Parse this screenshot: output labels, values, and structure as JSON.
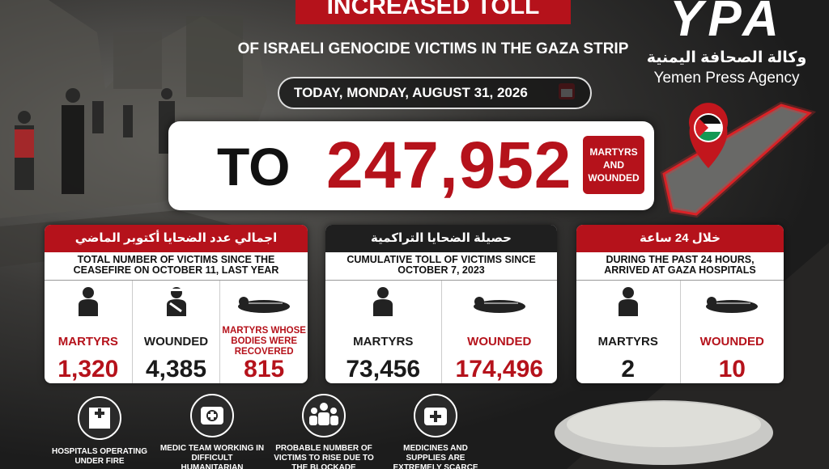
{
  "header": {
    "banner": "INCREASED TOLL",
    "subtitle": "OF ISRAELI GENOCIDE VICTIMS IN THE GAZA STRIP",
    "date": "TODAY, MONDAY, AUGUST 31, 2026"
  },
  "logo": {
    "mark": "YPA",
    "arabic": "وكالة الصحافة اليمنية",
    "name": "Yemen Press Agency"
  },
  "total": {
    "prefix": "TO",
    "value": "247,952",
    "badge": "MARTYRS AND WOUNDED"
  },
  "panels": [
    {
      "heading": "اجمالي عدد الضحايا أكتوبر الماضي",
      "caption": "TOTAL NUMBER OF VICTIMS SINCE THE CEASEFIRE ON OCTOBER 11, LAST YEAR",
      "stats": [
        {
          "label": "MARTYRS",
          "value": "1,320"
        },
        {
          "label": "WOUNDED",
          "value": "4,385"
        },
        {
          "label": "MARTYRS WHOSE BODIES WERE RECOVERED",
          "value": "815"
        }
      ]
    },
    {
      "heading": "حصيلة الضحايا التراكمية",
      "caption": "CUMULATIVE TOLL OF VICTIMS SINCE OCTOBER 7, 2023",
      "stats": [
        {
          "label": "MARTYRS",
          "value": "73,456"
        },
        {
          "label": "WOUNDED",
          "value": "174,496"
        }
      ]
    },
    {
      "heading": "خلال 24 ساعة",
      "caption": "DURING THE PAST 24 HOURS, ARRIVED AT GAZA HOSPITALS",
      "stats": [
        {
          "label": "MARTYRS",
          "value": "2"
        },
        {
          "label": "WOUNDED",
          "value": "10"
        }
      ]
    }
  ],
  "notes": [
    "HOSPITALS OPERATING UNDER FIRE",
    "MEDIC TEAM WORKING IN DIFFICULT HUMANITARIAN CONDITIONS",
    "PROBABLE NUMBER OF VICTIMS TO RISE DUE TO THE BLOCKADE",
    "MEDICINES AND SUPPLIES ARE EXTREMELY SCARCE"
  ]
}
